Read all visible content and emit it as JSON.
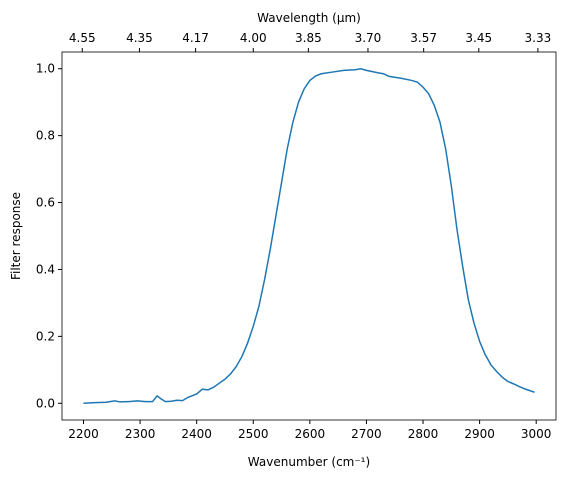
{
  "chart_data": {
    "type": "line",
    "xlabel": "Wavenumber (cm⁻¹)",
    "ylabel": "Filter response",
    "x2label": "Wavelength (μm)",
    "x": [
      2200,
      2220,
      2240,
      2255,
      2265,
      2280,
      2295,
      2310,
      2322,
      2330,
      2338,
      2345,
      2355,
      2365,
      2375,
      2385,
      2400,
      2410,
      2420,
      2430,
      2440,
      2450,
      2460,
      2470,
      2480,
      2490,
      2500,
      2510,
      2520,
      2530,
      2540,
      2550,
      2560,
      2570,
      2580,
      2590,
      2600,
      2610,
      2620,
      2640,
      2660,
      2680,
      2690,
      2700,
      2720,
      2730,
      2740,
      2760,
      2780,
      2790,
      2800,
      2810,
      2820,
      2830,
      2840,
      2850,
      2860,
      2870,
      2880,
      2890,
      2900,
      2910,
      2920,
      2930,
      2940,
      2950,
      2960,
      2970,
      2980,
      2990,
      2997
    ],
    "series": [
      {
        "name": "Filter response",
        "color": "#1f77b4",
        "values": [
          0.0,
          0.002,
          0.003,
          0.007,
          0.004,
          0.005,
          0.007,
          0.005,
          0.005,
          0.022,
          0.012,
          0.005,
          0.006,
          0.009,
          0.008,
          0.018,
          0.028,
          0.042,
          0.04,
          0.048,
          0.06,
          0.072,
          0.088,
          0.11,
          0.14,
          0.18,
          0.23,
          0.29,
          0.37,
          0.46,
          0.56,
          0.66,
          0.76,
          0.84,
          0.9,
          0.94,
          0.965,
          0.978,
          0.985,
          0.99,
          0.995,
          0.997,
          1.0,
          0.995,
          0.988,
          0.985,
          0.977,
          0.972,
          0.965,
          0.96,
          0.945,
          0.925,
          0.89,
          0.84,
          0.76,
          0.65,
          0.52,
          0.41,
          0.31,
          0.24,
          0.185,
          0.145,
          0.115,
          0.095,
          0.078,
          0.065,
          0.058,
          0.05,
          0.043,
          0.037,
          0.033
        ]
      }
    ],
    "xlim": [
      2162,
      3035
    ],
    "xticks": [
      2200,
      2300,
      2400,
      2500,
      2600,
      2700,
      2800,
      2900,
      3000
    ],
    "ylim": [
      -0.05,
      1.05
    ],
    "yticks": [
      {
        "value": 0.0,
        "label": "0.0"
      },
      0.2,
      0.4,
      0.6,
      0.8,
      {
        "value": 1.0,
        "label": "1.0"
      }
    ],
    "x2ticks": [
      4.55,
      4.35,
      4.17,
      {
        "value": 4.0,
        "label": "4.00"
      },
      3.85,
      {
        "value": 3.7,
        "label": "3.70"
      },
      3.57,
      3.45,
      3.33
    ],
    "x2scale": "reciprocal"
  }
}
